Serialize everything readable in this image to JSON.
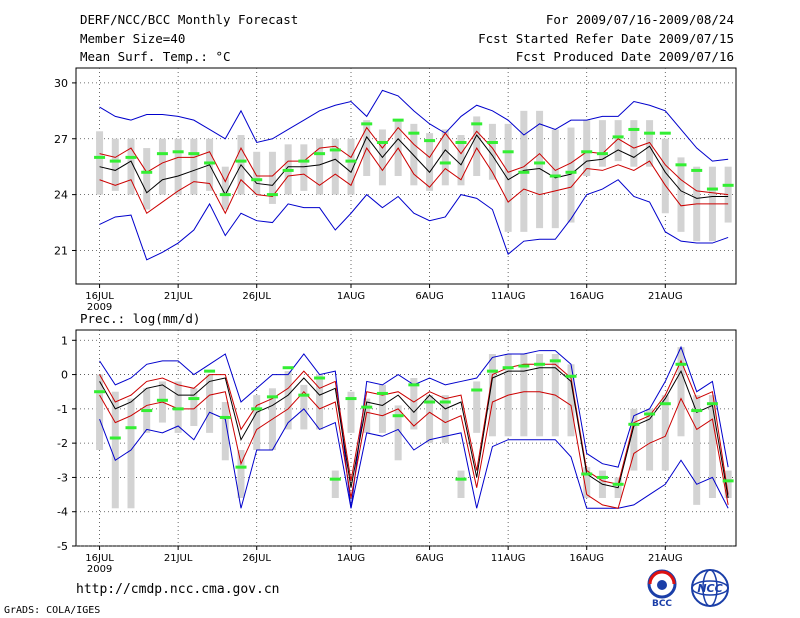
{
  "header": {
    "left": [
      "DERF/NCC/BCC Monthly Forecast",
      "Member Size=40",
      "Mean Surf. Temp.: °C"
    ],
    "right": [
      "For 2009/07/16-2009/08/24",
      "Fcst Started Refer Date 2009/07/15",
      "Fcst Produced Date 2009/07/16"
    ]
  },
  "footer": {
    "url": "http://cmdp.ncc.cma.gov.cn",
    "credit": "GrADS: COLA/IGES"
  },
  "logos": {
    "bcc": "BCC",
    "ncc": "NCC"
  },
  "colors": {
    "box": "#d3d3d3",
    "obs": "#33ee33",
    "band": "#cc0000",
    "range": "#0000cc",
    "mean": "#000000",
    "grid": "#444444"
  },
  "chart_data": [
    {
      "type": "line",
      "title": "Mean Surf. Temp.: °C",
      "ylabel": "°C",
      "ylim": [
        19.2,
        30.8
      ],
      "yticks": [
        21,
        24,
        27,
        30
      ],
      "xlim": [
        -1.5,
        40.5
      ],
      "x_ticks": [
        {
          "day": 0,
          "label": "16JUL"
        },
        {
          "day": 5,
          "label": "21JUL"
        },
        {
          "day": 10,
          "label": "26JUL"
        },
        {
          "day": 16,
          "label": "1AUG"
        },
        {
          "day": 21,
          "label": "6AUG"
        },
        {
          "day": 26,
          "label": "11AUG"
        },
        {
          "day": 31,
          "label": "16AUG"
        },
        {
          "day": 36,
          "label": "21AUG"
        }
      ],
      "year_label": "2009",
      "series": [
        {
          "name": "ensemble max",
          "values": [
            28.7,
            28.2,
            28.0,
            28.3,
            28.3,
            28.2,
            28.0,
            27.5,
            27.0,
            28.5,
            26.8,
            27.0,
            27.5,
            28.0,
            28.5,
            28.8,
            29.0,
            28.2,
            29.6,
            29.3,
            28.5,
            27.8,
            27.3,
            28.2,
            28.8,
            28.5,
            28.0,
            27.2,
            27.8,
            27.5,
            28.0,
            28.0,
            28.2,
            28.2,
            29.0,
            28.8,
            28.5,
            27.5,
            26.5,
            25.8,
            25.9
          ]
        },
        {
          "name": "upper percentile",
          "values": [
            26.2,
            26.0,
            26.5,
            25.2,
            25.7,
            26.0,
            26.0,
            26.3,
            24.7,
            26.5,
            25.0,
            25.0,
            25.8,
            25.8,
            26.5,
            26.6,
            26.0,
            27.6,
            26.5,
            27.6,
            26.7,
            26.0,
            27.3,
            26.2,
            27.4,
            26.5,
            25.2,
            25.5,
            26.2,
            25.3,
            25.7,
            26.3,
            26.2,
            27.0,
            26.5,
            26.8,
            25.6,
            24.8,
            24.2,
            24.1,
            24.0
          ]
        },
        {
          "name": "ensemble mean",
          "values": [
            25.5,
            25.3,
            25.8,
            24.1,
            24.8,
            25.0,
            25.3,
            25.6,
            24.0,
            25.6,
            24.6,
            24.5,
            25.5,
            25.5,
            25.6,
            25.9,
            25.2,
            27.1,
            26.0,
            27.0,
            26.1,
            25.2,
            26.4,
            25.6,
            27.2,
            26.1,
            24.8,
            25.3,
            25.4,
            24.9,
            25.1,
            25.8,
            25.9,
            26.4,
            26.0,
            26.6,
            25.2,
            24.2,
            23.8,
            23.9,
            23.9
          ]
        },
        {
          "name": "lower percentile",
          "values": [
            24.8,
            24.5,
            24.8,
            23.0,
            23.6,
            24.2,
            24.7,
            24.6,
            23.0,
            24.8,
            24.0,
            23.9,
            25.0,
            25.1,
            24.5,
            25.1,
            24.5,
            26.5,
            25.3,
            26.5,
            25.1,
            24.4,
            25.4,
            24.8,
            26.5,
            25.2,
            23.6,
            24.3,
            24.0,
            24.2,
            24.4,
            25.4,
            25.3,
            25.6,
            25.3,
            25.8,
            24.5,
            23.4,
            23.5,
            23.5,
            23.5
          ]
        },
        {
          "name": "ensemble min",
          "values": [
            22.4,
            22.8,
            22.9,
            20.5,
            20.9,
            21.4,
            22.1,
            23.5,
            21.8,
            23.0,
            22.6,
            22.5,
            23.5,
            23.3,
            23.3,
            22.1,
            23.0,
            24.0,
            23.3,
            23.9,
            23.0,
            22.6,
            22.8,
            24.0,
            23.8,
            23.2,
            20.8,
            21.5,
            21.6,
            21.6,
            22.7,
            24.0,
            24.3,
            24.8,
            23.9,
            23.6,
            22.0,
            21.5,
            21.4,
            21.4,
            21.7
          ]
        },
        {
          "name": "observed",
          "values": [
            26.0,
            25.8,
            26.0,
            25.2,
            26.2,
            26.3,
            26.2,
            25.7,
            24.0,
            25.8,
            24.8,
            24.0,
            25.3,
            25.8,
            26.2,
            26.4,
            25.8,
            27.8,
            26.8,
            28.0,
            27.3,
            26.9,
            25.7,
            26.8,
            27.8,
            26.8,
            26.3,
            25.2,
            25.7,
            25.0,
            25.2,
            26.3,
            26.2,
            27.1,
            27.5,
            27.3,
            27.3,
            25.6,
            25.3,
            24.3,
            24.5
          ]
        },
        {
          "name": "box upper",
          "values": [
            27.4,
            27.0,
            27.0,
            26.5,
            27.0,
            27.0,
            27.0,
            27.0,
            25.5,
            27.2,
            26.3,
            26.3,
            26.7,
            26.7,
            27.0,
            27.0,
            27.0,
            28.0,
            27.5,
            28.0,
            27.8,
            27.3,
            27.5,
            27.2,
            28.2,
            27.8,
            27.8,
            28.5,
            28.5,
            27.5,
            27.6,
            28.0,
            28.0,
            28.0,
            28.0,
            28.0,
            27.0,
            26.0,
            25.5,
            25.5,
            25.5
          ]
        },
        {
          "name": "box lower",
          "values": [
            24.0,
            24.2,
            24.0,
            23.2,
            24.0,
            24.0,
            24.0,
            24.2,
            23.2,
            24.0,
            24.0,
            23.5,
            24.0,
            24.2,
            24.0,
            24.0,
            24.0,
            25.0,
            24.5,
            25.0,
            24.5,
            24.2,
            24.5,
            24.5,
            25.0,
            24.8,
            22.0,
            22.0,
            22.2,
            22.2,
            22.5,
            25.0,
            25.5,
            25.8,
            25.5,
            25.5,
            23.0,
            22.0,
            21.5,
            21.5,
            22.5
          ]
        }
      ]
    },
    {
      "type": "line",
      "title": "Prec.: log(mm/d)",
      "ylabel": "log(mm/d)",
      "ylim": [
        -5,
        1.3
      ],
      "yticks": [
        -5,
        -4,
        -3,
        -2,
        -1,
        0,
        1
      ],
      "xlim": [
        -1.5,
        40.5
      ],
      "x_ticks": [
        {
          "day": 0,
          "label": "16JUL"
        },
        {
          "day": 5,
          "label": "21JUL"
        },
        {
          "day": 10,
          "label": "26JUL"
        },
        {
          "day": 16,
          "label": "1AUG"
        },
        {
          "day": 21,
          "label": "6AUG"
        },
        {
          "day": 26,
          "label": "11AUG"
        },
        {
          "day": 31,
          "label": "16AUG"
        },
        {
          "day": 36,
          "label": "21AUG"
        }
      ],
      "year_label": "2009",
      "series": [
        {
          "name": "ensemble max",
          "values": [
            0.4,
            -0.3,
            -0.1,
            0.3,
            0.4,
            0.4,
            0.0,
            0.3,
            0.6,
            -0.8,
            -0.4,
            0.0,
            0.0,
            0.6,
            0.0,
            0.1,
            -3.9,
            -0.2,
            -0.3,
            0.0,
            -0.3,
            -0.1,
            -0.3,
            -0.2,
            -0.1,
            0.5,
            0.6,
            0.6,
            0.7,
            0.7,
            0.3,
            -2.3,
            -2.6,
            -2.7,
            -1.2,
            -1.0,
            -0.2,
            0.8,
            -0.5,
            -0.2,
            -2.7
          ]
        },
        {
          "name": "upper percentile",
          "values": [
            0.0,
            -0.8,
            -0.6,
            -0.2,
            -0.1,
            -0.3,
            -0.4,
            0.0,
            0.0,
            -1.6,
            -0.9,
            -0.7,
            -0.4,
            0.1,
            -0.4,
            -0.2,
            -3.1,
            -0.5,
            -0.6,
            -0.5,
            -0.8,
            -0.5,
            -0.7,
            -0.6,
            -2.8,
            0.0,
            0.2,
            0.3,
            0.3,
            0.3,
            -0.1,
            -2.8,
            -3.1,
            -3.2,
            -1.4,
            -1.2,
            -0.6,
            0.4,
            -0.7,
            -0.5,
            -3.5
          ]
        },
        {
          "name": "ensemble mean",
          "values": [
            -0.2,
            -1.0,
            -0.8,
            -0.4,
            -0.3,
            -0.6,
            -0.6,
            -0.2,
            -0.1,
            -1.9,
            -1.1,
            -0.9,
            -0.6,
            -0.1,
            -0.6,
            -0.4,
            -3.3,
            -0.8,
            -0.9,
            -0.6,
            -1.1,
            -0.6,
            -1.0,
            -0.8,
            -3.0,
            -0.1,
            0.1,
            0.1,
            0.2,
            0.2,
            -0.2,
            -2.9,
            -3.2,
            -3.3,
            -1.5,
            -1.3,
            -0.7,
            0.1,
            -1.1,
            -0.9,
            -3.6
          ]
        },
        {
          "name": "lower percentile",
          "values": [
            -0.6,
            -1.4,
            -1.2,
            -0.9,
            -0.8,
            -1.0,
            -1.0,
            -0.6,
            -0.5,
            -2.6,
            -1.6,
            -1.3,
            -1.0,
            -0.5,
            -1.0,
            -0.8,
            -3.6,
            -1.1,
            -1.2,
            -1.0,
            -1.5,
            -1.1,
            -1.4,
            -1.2,
            -3.3,
            -0.8,
            -0.6,
            -0.5,
            -0.5,
            -0.6,
            -0.9,
            -3.5,
            -3.8,
            -3.9,
            -2.3,
            -2.0,
            -1.8,
            -0.7,
            -1.6,
            -1.3,
            -3.8
          ]
        },
        {
          "name": "ensemble min",
          "values": [
            -1.3,
            -2.5,
            -2.2,
            -1.6,
            -1.7,
            -1.5,
            -1.9,
            -1.1,
            -1.3,
            -3.9,
            -2.2,
            -2.2,
            -1.4,
            -1.0,
            -1.6,
            -1.4,
            -3.9,
            -1.7,
            -1.8,
            -1.6,
            -2.2,
            -1.9,
            -1.8,
            -1.7,
            -3.9,
            -2.1,
            -1.9,
            -1.9,
            -1.9,
            -1.9,
            -2.4,
            -3.9,
            -3.9,
            -3.9,
            -3.8,
            -3.5,
            -3.2,
            -2.5,
            -3.2,
            -3.0,
            -3.9
          ]
        },
        {
          "name": "observed",
          "values": [
            -0.5,
            -1.85,
            -1.55,
            -1.05,
            -0.75,
            -1.0,
            -0.7,
            0.1,
            -1.25,
            -2.7,
            -1.0,
            -0.65,
            0.2,
            -0.6,
            -0.1,
            -3.05,
            -0.7,
            -0.95,
            -0.55,
            -1.2,
            -0.3,
            -0.8,
            -0.8,
            -3.05,
            -0.45,
            0.1,
            0.2,
            0.25,
            0.3,
            0.4,
            -0.05,
            -2.9,
            -3.0,
            -3.2,
            -1.45,
            -1.15,
            -0.85,
            0.3,
            -1.05,
            -0.85,
            -3.1
          ]
        },
        {
          "name": "box upper",
          "values": [
            0.0,
            -0.5,
            -0.7,
            -0.4,
            -0.2,
            -0.2,
            -0.4,
            0.0,
            -0.8,
            -2.2,
            -0.6,
            -0.4,
            0.1,
            -0.3,
            0.0,
            -2.8,
            -0.5,
            -0.7,
            -0.3,
            -0.9,
            -0.1,
            -0.6,
            -0.6,
            -2.8,
            -0.2,
            0.6,
            0.6,
            0.6,
            0.6,
            0.6,
            0.3,
            -2.7,
            -2.8,
            -3.0,
            -1.0,
            -1.0,
            -0.6,
            0.8,
            -0.6,
            -0.6,
            -2.8
          ]
        },
        {
          "name": "box lower",
          "values": [
            -2.2,
            -3.9,
            -3.9,
            -1.7,
            -1.4,
            -1.7,
            -1.5,
            -1.7,
            -2.5,
            -3.6,
            -2.2,
            -2.2,
            -1.6,
            -1.6,
            -1.6,
            -3.6,
            -1.7,
            -1.7,
            -1.7,
            -2.5,
            -1.6,
            -2.0,
            -2.0,
            -3.6,
            -1.7,
            -1.8,
            -1.8,
            -1.8,
            -1.8,
            -1.8,
            -1.8,
            -3.6,
            -3.6,
            -3.6,
            -2.8,
            -2.8,
            -2.8,
            -1.8,
            -3.8,
            -3.6,
            -3.6
          ]
        }
      ]
    }
  ]
}
